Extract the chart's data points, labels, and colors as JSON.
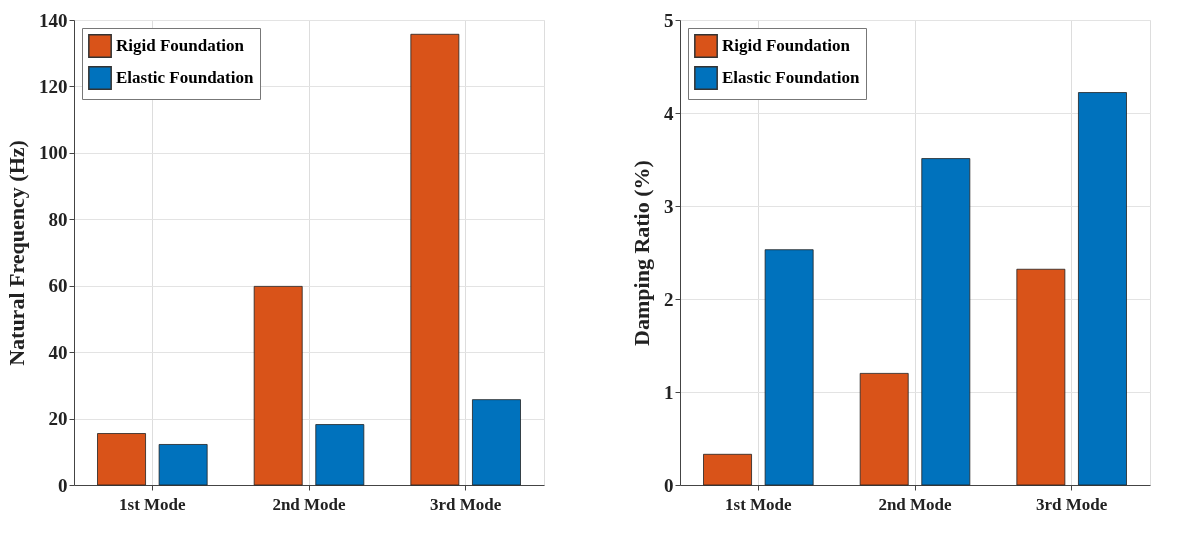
{
  "chart_data": [
    {
      "type": "bar",
      "ylabel": "Natural Frequency (Hz)",
      "categories": [
        "1st Mode",
        "2nd Mode",
        "3rd Mode"
      ],
      "series": [
        {
          "name": "Rigid Foundation",
          "color": "#d95319",
          "values": [
            15.5,
            59.8,
            135.7
          ]
        },
        {
          "name": "Elastic Foundation",
          "color": "#0072bd",
          "values": [
            12.2,
            18.2,
            25.7
          ]
        }
      ],
      "ylim": [
        0,
        140
      ],
      "yticks": [
        0,
        20,
        40,
        60,
        80,
        100,
        120,
        140
      ],
      "grid": true,
      "legend": "top left"
    },
    {
      "type": "bar",
      "ylabel": "Damping Ratio (%)",
      "categories": [
        "1st Mode",
        "2nd Mode",
        "3rd Mode"
      ],
      "series": [
        {
          "name": "Rigid Foundation",
          "color": "#d95319",
          "values": [
            0.33,
            1.2,
            2.32
          ]
        },
        {
          "name": "Elastic Foundation",
          "color": "#0072bd",
          "values": [
            2.53,
            3.51,
            4.22
          ]
        }
      ],
      "ylim": [
        0,
        5
      ],
      "yticks": [
        0,
        1,
        2,
        3,
        4,
        5
      ],
      "grid": true,
      "legend": "top left"
    }
  ]
}
